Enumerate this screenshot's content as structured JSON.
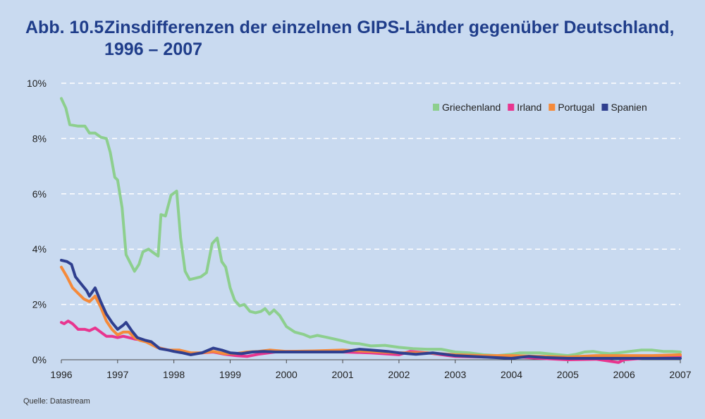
{
  "header": {
    "number": "Abb. 10.5",
    "title": "Zinsdifferenzen der einzelnen GIPS-Länder gegenüber Deutschland,",
    "subtitle": "1996 – 2007"
  },
  "source": "Quelle: Datastream",
  "colors": {
    "background": "#c9daf0",
    "title": "#1f3d8a",
    "grid": "#ffffff",
    "axis": "#4a4a4a"
  },
  "chart_data": {
    "type": "line",
    "xlim": [
      1996,
      2007
    ],
    "ylim": [
      0,
      10
    ],
    "x_ticks": [
      "1996",
      "1997",
      "1998",
      "1999",
      "2000",
      "2001",
      "2002",
      "2003",
      "2004",
      "2005",
      "2006",
      "2007"
    ],
    "y_ticks": [
      "0%",
      "2%",
      "4%",
      "6%",
      "8%",
      "10%"
    ],
    "grid": "horizontal dashed",
    "legend_position": "top-right",
    "series": [
      {
        "name": "Griechenland",
        "color": "#8dcf8e",
        "points": [
          [
            1996.0,
            9.45
          ],
          [
            1996.08,
            9.1
          ],
          [
            1996.15,
            8.5
          ],
          [
            1996.3,
            8.45
          ],
          [
            1996.42,
            8.45
          ],
          [
            1996.5,
            8.2
          ],
          [
            1996.6,
            8.2
          ],
          [
            1996.7,
            8.05
          ],
          [
            1996.8,
            8.0
          ],
          [
            1996.87,
            7.5
          ],
          [
            1996.95,
            6.6
          ],
          [
            1997.0,
            6.5
          ],
          [
            1997.08,
            5.5
          ],
          [
            1997.15,
            3.8
          ],
          [
            1997.25,
            3.4
          ],
          [
            1997.3,
            3.2
          ],
          [
            1997.38,
            3.45
          ],
          [
            1997.45,
            3.9
          ],
          [
            1997.55,
            4.0
          ],
          [
            1997.65,
            3.85
          ],
          [
            1997.72,
            3.75
          ],
          [
            1997.77,
            5.25
          ],
          [
            1997.85,
            5.2
          ],
          [
            1997.95,
            5.95
          ],
          [
            1998.05,
            6.1
          ],
          [
            1998.12,
            4.4
          ],
          [
            1998.2,
            3.2
          ],
          [
            1998.28,
            2.9
          ],
          [
            1998.38,
            2.95
          ],
          [
            1998.48,
            3.0
          ],
          [
            1998.58,
            3.15
          ],
          [
            1998.68,
            4.2
          ],
          [
            1998.77,
            4.4
          ],
          [
            1998.85,
            3.55
          ],
          [
            1998.92,
            3.35
          ],
          [
            1999.0,
            2.6
          ],
          [
            1999.08,
            2.15
          ],
          [
            1999.17,
            1.95
          ],
          [
            1999.25,
            2.0
          ],
          [
            1999.35,
            1.75
          ],
          [
            1999.45,
            1.7
          ],
          [
            1999.55,
            1.75
          ],
          [
            1999.62,
            1.85
          ],
          [
            1999.7,
            1.65
          ],
          [
            1999.78,
            1.8
          ],
          [
            1999.88,
            1.6
          ],
          [
            2000.0,
            1.2
          ],
          [
            2000.15,
            1.0
          ],
          [
            2000.3,
            0.92
          ],
          [
            2000.42,
            0.82
          ],
          [
            2000.55,
            0.88
          ],
          [
            2000.7,
            0.82
          ],
          [
            2000.85,
            0.75
          ],
          [
            2001.0,
            0.68
          ],
          [
            2001.15,
            0.6
          ],
          [
            2001.3,
            0.58
          ],
          [
            2001.5,
            0.5
          ],
          [
            2001.75,
            0.52
          ],
          [
            2002.0,
            0.45
          ],
          [
            2002.25,
            0.4
          ],
          [
            2002.5,
            0.38
          ],
          [
            2002.75,
            0.38
          ],
          [
            2003.0,
            0.28
          ],
          [
            2003.25,
            0.25
          ],
          [
            2003.5,
            0.18
          ],
          [
            2003.75,
            0.15
          ],
          [
            2004.0,
            0.2
          ],
          [
            2004.15,
            0.25
          ],
          [
            2004.3,
            0.25
          ],
          [
            2004.5,
            0.25
          ],
          [
            2004.75,
            0.2
          ],
          [
            2005.0,
            0.15
          ],
          [
            2005.15,
            0.2
          ],
          [
            2005.3,
            0.28
          ],
          [
            2005.45,
            0.3
          ],
          [
            2005.6,
            0.25
          ],
          [
            2005.75,
            0.22
          ],
          [
            2005.9,
            0.25
          ],
          [
            2006.1,
            0.3
          ],
          [
            2006.3,
            0.35
          ],
          [
            2006.5,
            0.35
          ],
          [
            2006.7,
            0.3
          ],
          [
            2006.85,
            0.3
          ],
          [
            2007.0,
            0.28
          ]
        ]
      },
      {
        "name": "Irland",
        "color": "#e8358f",
        "points": [
          [
            1996.0,
            1.35
          ],
          [
            1996.05,
            1.3
          ],
          [
            1996.12,
            1.4
          ],
          [
            1996.2,
            1.3
          ],
          [
            1996.3,
            1.1
          ],
          [
            1996.42,
            1.1
          ],
          [
            1996.5,
            1.05
          ],
          [
            1996.6,
            1.15
          ],
          [
            1996.7,
            1.0
          ],
          [
            1996.8,
            0.85
          ],
          [
            1996.9,
            0.85
          ],
          [
            1997.0,
            0.8
          ],
          [
            1997.1,
            0.85
          ],
          [
            1997.2,
            0.8
          ],
          [
            1997.3,
            0.75
          ],
          [
            1997.5,
            0.7
          ],
          [
            1997.7,
            0.45
          ],
          [
            1997.9,
            0.35
          ],
          [
            1998.1,
            0.3
          ],
          [
            1998.3,
            0.2
          ],
          [
            1998.5,
            0.25
          ],
          [
            1998.7,
            0.28
          ],
          [
            1998.9,
            0.2
          ],
          [
            1999.1,
            0.15
          ],
          [
            1999.3,
            0.12
          ],
          [
            1999.5,
            0.2
          ],
          [
            1999.8,
            0.28
          ],
          [
            2000.0,
            0.3
          ],
          [
            2000.5,
            0.3
          ],
          [
            2001.0,
            0.28
          ],
          [
            2001.5,
            0.25
          ],
          [
            2002.0,
            0.18
          ],
          [
            2002.2,
            0.3
          ],
          [
            2002.5,
            0.25
          ],
          [
            2003.0,
            0.12
          ],
          [
            2003.5,
            0.1
          ],
          [
            2004.0,
            0.12
          ],
          [
            2004.5,
            0.05
          ],
          [
            2005.0,
            0.0
          ],
          [
            2005.5,
            0.02
          ],
          [
            2005.9,
            -0.1
          ],
          [
            2006.0,
            0.0
          ],
          [
            2006.5,
            0.08
          ],
          [
            2007.0,
            0.12
          ]
        ]
      },
      {
        "name": "Portugal",
        "color": "#f58a3a",
        "points": [
          [
            1996.0,
            3.35
          ],
          [
            1996.1,
            3.0
          ],
          [
            1996.2,
            2.6
          ],
          [
            1996.3,
            2.4
          ],
          [
            1996.4,
            2.2
          ],
          [
            1996.5,
            2.1
          ],
          [
            1996.6,
            2.3
          ],
          [
            1996.7,
            1.9
          ],
          [
            1996.8,
            1.4
          ],
          [
            1996.9,
            1.1
          ],
          [
            1997.0,
            0.9
          ],
          [
            1997.1,
            1.0
          ],
          [
            1997.2,
            1.0
          ],
          [
            1997.3,
            0.8
          ],
          [
            1997.4,
            0.7
          ],
          [
            1997.5,
            0.65
          ],
          [
            1997.7,
            0.45
          ],
          [
            1997.9,
            0.35
          ],
          [
            1998.1,
            0.35
          ],
          [
            1998.3,
            0.25
          ],
          [
            1998.5,
            0.25
          ],
          [
            1998.7,
            0.3
          ],
          [
            1998.9,
            0.22
          ],
          [
            1999.1,
            0.22
          ],
          [
            1999.3,
            0.28
          ],
          [
            1999.5,
            0.3
          ],
          [
            1999.7,
            0.35
          ],
          [
            2000.0,
            0.3
          ],
          [
            2000.5,
            0.32
          ],
          [
            2001.0,
            0.35
          ],
          [
            2001.5,
            0.3
          ],
          [
            2002.0,
            0.25
          ],
          [
            2002.5,
            0.25
          ],
          [
            2003.0,
            0.18
          ],
          [
            2003.5,
            0.15
          ],
          [
            2004.0,
            0.15
          ],
          [
            2004.5,
            0.12
          ],
          [
            2005.0,
            0.1
          ],
          [
            2005.5,
            0.15
          ],
          [
            2006.0,
            0.15
          ],
          [
            2006.5,
            0.15
          ],
          [
            2007.0,
            0.18
          ]
        ]
      },
      {
        "name": "Spanien",
        "color": "#2f3f8f",
        "points": [
          [
            1996.0,
            3.6
          ],
          [
            1996.1,
            3.55
          ],
          [
            1996.18,
            3.45
          ],
          [
            1996.25,
            3.0
          ],
          [
            1996.35,
            2.75
          ],
          [
            1996.45,
            2.5
          ],
          [
            1996.5,
            2.3
          ],
          [
            1996.6,
            2.6
          ],
          [
            1996.7,
            2.1
          ],
          [
            1996.8,
            1.65
          ],
          [
            1996.9,
            1.35
          ],
          [
            1997.0,
            1.1
          ],
          [
            1997.1,
            1.25
          ],
          [
            1997.15,
            1.35
          ],
          [
            1997.25,
            1.05
          ],
          [
            1997.35,
            0.8
          ],
          [
            1997.5,
            0.7
          ],
          [
            1997.6,
            0.65
          ],
          [
            1997.75,
            0.4
          ],
          [
            1997.9,
            0.35
          ],
          [
            1998.0,
            0.3
          ],
          [
            1998.15,
            0.25
          ],
          [
            1998.3,
            0.18
          ],
          [
            1998.5,
            0.25
          ],
          [
            1998.7,
            0.42
          ],
          [
            1998.85,
            0.35
          ],
          [
            1999.0,
            0.25
          ],
          [
            1999.2,
            0.22
          ],
          [
            1999.4,
            0.28
          ],
          [
            1999.6,
            0.3
          ],
          [
            1999.8,
            0.28
          ],
          [
            2000.0,
            0.28
          ],
          [
            2000.5,
            0.28
          ],
          [
            2001.0,
            0.28
          ],
          [
            2001.3,
            0.38
          ],
          [
            2001.5,
            0.35
          ],
          [
            2001.8,
            0.3
          ],
          [
            2002.0,
            0.25
          ],
          [
            2002.3,
            0.2
          ],
          [
            2002.6,
            0.25
          ],
          [
            2003.0,
            0.15
          ],
          [
            2003.5,
            0.1
          ],
          [
            2004.0,
            0.05
          ],
          [
            2004.3,
            0.12
          ],
          [
            2004.6,
            0.08
          ],
          [
            2005.0,
            0.05
          ],
          [
            2005.5,
            0.05
          ],
          [
            2006.0,
            0.05
          ],
          [
            2006.5,
            0.05
          ],
          [
            2007.0,
            0.05
          ]
        ]
      }
    ]
  }
}
